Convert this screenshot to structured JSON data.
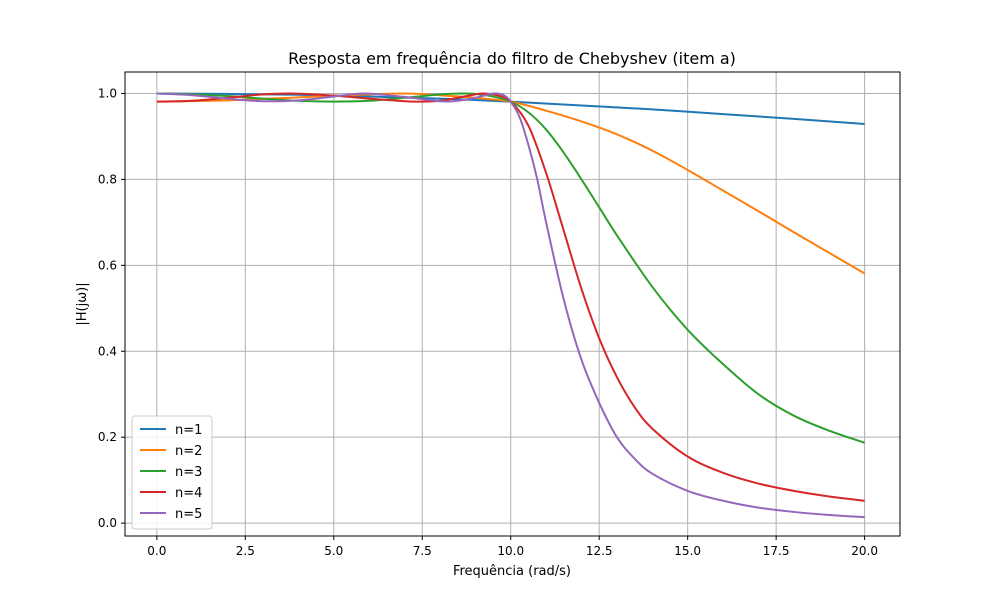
{
  "chart_data": {
    "type": "line",
    "title": "Resposta em frequência do filtro de Chebyshev (item a)",
    "xlabel": "Frequência (rad/s)",
    "ylabel": "|H(jω)|",
    "xlim": [
      -0.9,
      21.0
    ],
    "ylim": [
      -0.03,
      1.05
    ],
    "x_ticks": [
      0.0,
      2.5,
      5.0,
      7.5,
      10.0,
      12.5,
      15.0,
      17.5,
      20.0
    ],
    "x_tick_labels": [
      "0.0",
      "2.5",
      "5.0",
      "7.5",
      "10.0",
      "12.5",
      "15.0",
      "17.5",
      "20.0"
    ],
    "y_ticks": [
      0.0,
      0.2,
      0.4,
      0.6,
      0.8,
      1.0
    ],
    "y_tick_labels": [
      "0.0",
      "0.2",
      "0.4",
      "0.6",
      "0.8",
      "1.0"
    ],
    "grid": true,
    "legend": "lower-left",
    "series": [
      {
        "name": "n=1",
        "color": "#1f77b4",
        "x": [
          0,
          2,
          4,
          6,
          8,
          10,
          12,
          14,
          16,
          18,
          20
        ],
        "y": [
          1.0,
          0.999,
          0.997,
          0.993,
          0.988,
          0.981,
          0.972,
          0.963,
          0.952,
          0.941,
          0.929
        ]
      },
      {
        "name": "n=2",
        "color": "#ff7f0e",
        "x": [
          0,
          2,
          4,
          6,
          7.07,
          8,
          9,
          10,
          11,
          12,
          13,
          14,
          15,
          16,
          17,
          18,
          19,
          20
        ],
        "y": [
          0.981,
          0.984,
          0.991,
          0.998,
          1.0,
          0.996,
          0.99,
          0.981,
          0.96,
          0.935,
          0.905,
          0.867,
          0.822,
          0.774,
          0.726,
          0.677,
          0.629,
          0.581
        ]
      },
      {
        "name": "n=3",
        "color": "#2ca02c",
        "x": [
          0,
          1,
          2,
          3,
          4,
          5,
          6,
          7,
          7.5,
          8,
          8.66,
          9,
          9.5,
          10,
          10.5,
          11,
          11.5,
          12,
          12.5,
          13,
          14,
          15,
          16,
          17,
          18,
          19,
          20
        ],
        "y": [
          1.0,
          0.998,
          0.994,
          0.988,
          0.983,
          0.981,
          0.983,
          0.99,
          0.994,
          0.998,
          1.0,
          0.999,
          0.993,
          0.981,
          0.956,
          0.916,
          0.862,
          0.8,
          0.735,
          0.67,
          0.55,
          0.45,
          0.37,
          0.3,
          0.25,
          0.215,
          0.187
        ]
      },
      {
        "name": "n=4",
        "color": "#d62728",
        "x": [
          0,
          1,
          2,
          3,
          3.83,
          5,
          6,
          7,
          7.5,
          8,
          8.5,
          9,
          9.24,
          9.6,
          10,
          10.5,
          11,
          11.5,
          12,
          12.5,
          13,
          13.5,
          14,
          15,
          16,
          17,
          18,
          19,
          20
        ],
        "y": [
          0.981,
          0.983,
          0.99,
          0.998,
          1.0,
          0.995,
          0.988,
          0.982,
          0.981,
          0.983,
          0.99,
          0.998,
          1.0,
          0.996,
          0.981,
          0.925,
          0.815,
          0.68,
          0.545,
          0.43,
          0.34,
          0.27,
          0.22,
          0.155,
          0.117,
          0.092,
          0.075,
          0.062,
          0.052
        ]
      },
      {
        "name": "n=5",
        "color": "#9467bd",
        "x": [
          0,
          1,
          2,
          3,
          4,
          5,
          5.88,
          7,
          8,
          8.5,
          9,
          9.51,
          9.8,
          10,
          10.25,
          10.5,
          10.75,
          11,
          11.5,
          12,
          12.5,
          13,
          13.5,
          14,
          15,
          16,
          17,
          18,
          19,
          20
        ],
        "y": [
          1.0,
          0.996,
          0.988,
          0.982,
          0.984,
          0.993,
          1.0,
          0.992,
          0.982,
          0.983,
          0.99,
          1.0,
          0.996,
          0.981,
          0.945,
          0.88,
          0.8,
          0.7,
          0.52,
          0.38,
          0.28,
          0.2,
          0.15,
          0.115,
          0.075,
          0.052,
          0.036,
          0.026,
          0.019,
          0.014
        ]
      }
    ]
  }
}
